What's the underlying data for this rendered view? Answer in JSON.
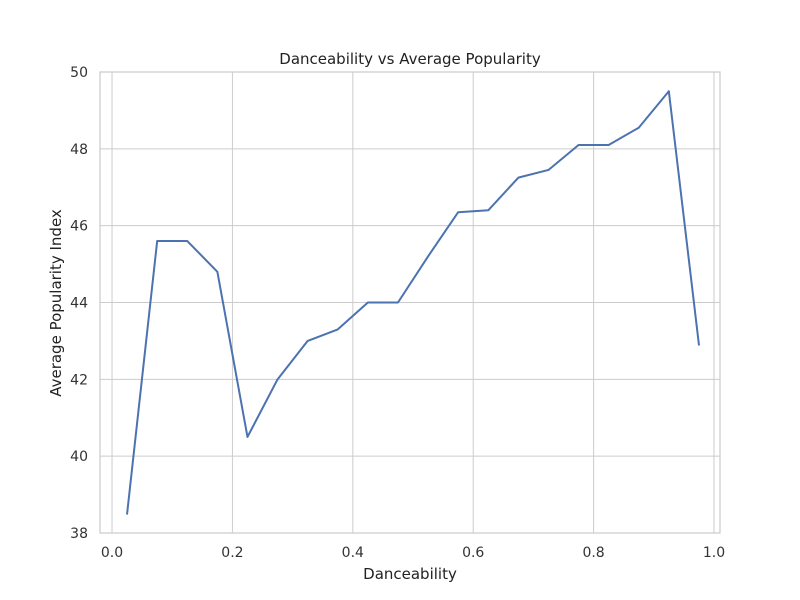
{
  "chart_data": {
    "type": "line",
    "title": "Danceability vs Average Popularity",
    "xlabel": "Danceability",
    "ylabel": "Average Popularity Index",
    "xlim": [
      -0.02,
      1.01
    ],
    "ylim": [
      38,
      50
    ],
    "xticks": [
      0.0,
      0.2,
      0.4,
      0.6,
      0.8,
      1.0
    ],
    "xtick_labels": [
      "0.0",
      "0.2",
      "0.4",
      "0.6",
      "0.8",
      "1.0"
    ],
    "yticks": [
      38,
      40,
      42,
      44,
      46,
      48,
      50
    ],
    "ytick_labels": [
      "38",
      "40",
      "42",
      "44",
      "46",
      "48",
      "50"
    ],
    "grid": true,
    "series": [
      {
        "color": "#4c72b0",
        "x": [
          0.025,
          0.075,
          0.125,
          0.175,
          0.225,
          0.275,
          0.325,
          0.375,
          0.425,
          0.475,
          0.525,
          0.575,
          0.625,
          0.675,
          0.725,
          0.775,
          0.825,
          0.875,
          0.925,
          0.975
        ],
        "y": [
          38.5,
          45.6,
          45.6,
          44.8,
          40.5,
          42.0,
          43.0,
          43.3,
          44.0,
          44.0,
          45.2,
          46.35,
          46.4,
          47.25,
          47.45,
          48.1,
          48.1,
          48.55,
          49.5,
          42.9
        ]
      }
    ]
  }
}
